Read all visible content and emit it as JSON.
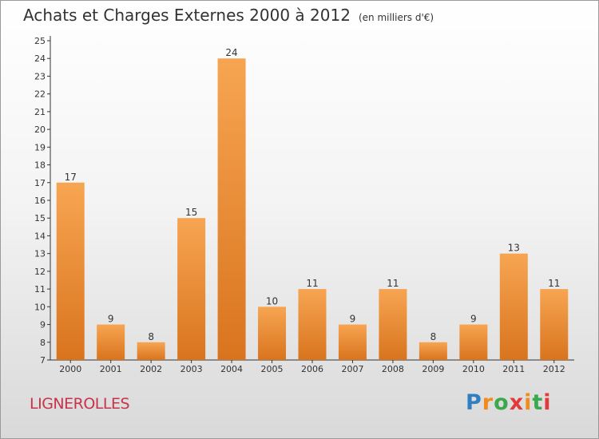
{
  "header": {
    "title": "Achats et Charges Externes 2000 à 2012",
    "unit": "(en milliers d'€)"
  },
  "footer": {
    "commune": "LIGNEROLLES",
    "logo": {
      "letters": [
        "P",
        "r",
        "o",
        "x",
        "i",
        "t",
        "i"
      ],
      "colors": [
        "#2f7fc1",
        "#f08b1c",
        "#3aa84b",
        "#e23a3a",
        "#f08b1c",
        "#3aa84b",
        "#e23a3a"
      ]
    }
  },
  "chart_data": {
    "type": "bar",
    "title": "Achats et Charges Externes 2000 à 2012",
    "subtitle": "(en milliers d'€)",
    "categories": [
      "2000",
      "2001",
      "2002",
      "2003",
      "2004",
      "2005",
      "2006",
      "2007",
      "2008",
      "2009",
      "2010",
      "2011",
      "2012"
    ],
    "values": [
      17,
      9,
      8,
      15,
      24,
      10,
      11,
      9,
      11,
      8,
      9,
      13,
      11
    ],
    "yticks": [
      7,
      8,
      9,
      10,
      11,
      12,
      13,
      14,
      15,
      16,
      17,
      18,
      19,
      20,
      21,
      22,
      23,
      24,
      25
    ],
    "ylim": [
      7,
      25
    ],
    "data_labels": true,
    "grid": false,
    "colors": {
      "bar_top": "#f7a552",
      "bar_bottom": "#d9741e",
      "axis": "#333333"
    }
  }
}
